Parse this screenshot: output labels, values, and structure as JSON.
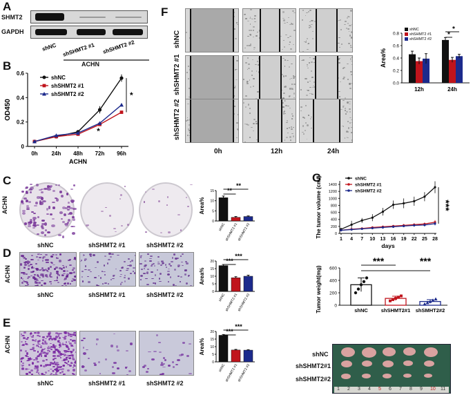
{
  "panels": {
    "A": "A",
    "B": "B",
    "C": "C",
    "D": "D",
    "E": "E",
    "F": "F",
    "G": "G"
  },
  "panel_a": {
    "row_labels": [
      "SHMT2",
      "GAPDH"
    ],
    "lane_labels": [
      "shNC",
      "shSHMT2 #1",
      "shSHMT2 #2"
    ],
    "cell_line": "ACHN"
  },
  "panel_c": {
    "cell_label": "ACHN",
    "conditions": [
      "shNC",
      "shSHMT2 #1",
      "shSHMT2 #2"
    ]
  },
  "panel_d": {
    "cell_label": "ACHN",
    "conditions": [
      "shNC",
      "shSHMT2 #1",
      "shSHMT2 #2"
    ]
  },
  "panel_e": {
    "cell_label": "ACHN",
    "conditions": [
      "shNC",
      "shSHMT2 #1",
      "shSHMT2 #2"
    ]
  },
  "panel_f": {
    "row_labels": [
      "shNC",
      "shSHMT2 #1",
      "shSHMT2 #2"
    ],
    "col_labels": [
      "0h",
      "12h",
      "24h"
    ]
  },
  "panel_g": {
    "photo_rows": [
      "shNC",
      "shSHMT2#1",
      "shSHMT2#2"
    ],
    "ruler": [
      "1",
      "2",
      "3",
      "4",
      "5",
      "6",
      "7",
      "8",
      "9",
      "10",
      "11"
    ]
  },
  "colors": {
    "shNC": "#111111",
    "sh1": "#c0141c",
    "sh2": "#1c2a8c",
    "purple": "#7a3a9a"
  },
  "chart_data": [
    {
      "id": "B",
      "type": "line",
      "ylabel": "OD450",
      "xlabel": "ACHN",
      "categories": [
        "0h",
        "24h",
        "48h",
        "72h",
        "96h"
      ],
      "ylim": [
        0,
        0.6
      ],
      "yticks": [
        0,
        0.2,
        0.4,
        0.6
      ],
      "series": [
        {
          "name": "shNC",
          "values": [
            0.04,
            0.08,
            0.12,
            0.3,
            0.56
          ],
          "err": [
            0.005,
            0.008,
            0.01,
            0.03,
            0.03
          ],
          "color": "#111111",
          "marker": "circle"
        },
        {
          "name": "shSHMT2 #1",
          "values": [
            0.04,
            0.08,
            0.1,
            0.18,
            0.28
          ],
          "err": [
            0.005,
            0.005,
            0.008,
            0.01,
            0.01
          ],
          "color": "#c0141c",
          "marker": "square"
        },
        {
          "name": "shSHMT2 #2",
          "values": [
            0.04,
            0.09,
            0.11,
            0.19,
            0.34
          ],
          "err": [
            0.005,
            0.005,
            0.008,
            0.01,
            0.01
          ],
          "color": "#1c2a8c",
          "marker": "triangle"
        }
      ],
      "annotations": [
        "*",
        "*"
      ]
    },
    {
      "id": "F",
      "type": "bar",
      "ylabel": "Area%",
      "categories": [
        "12h",
        "24h"
      ],
      "ylim": [
        0,
        0.8
      ],
      "yticks": [
        0.0,
        0.2,
        0.4,
        0.6,
        0.8
      ],
      "series": [
        {
          "name": "shNC",
          "values": [
            0.46,
            0.69
          ],
          "err": [
            0.05,
            0.04
          ],
          "color": "#111111"
        },
        {
          "name": "shSHMT2 #1",
          "values": [
            0.35,
            0.37
          ],
          "err": [
            0.05,
            0.04
          ],
          "color": "#c0141c"
        },
        {
          "name": "shSHMT2 #2",
          "values": [
            0.39,
            0.43
          ],
          "err": [
            0.08,
            0.03
          ],
          "color": "#1c2a8c"
        }
      ],
      "annotations": [
        "*",
        "*"
      ]
    },
    {
      "id": "C",
      "type": "bar",
      "ylabel": "Area%",
      "categories": [
        "shNC",
        "shSHMT2 #1",
        "shSHMT2 #2"
      ],
      "ylim": [
        0,
        15
      ],
      "yticks": [
        0,
        5,
        10,
        15
      ],
      "values": [
        11.5,
        1.8,
        2.2
      ],
      "err": [
        0.8,
        0.4,
        0.3
      ],
      "colors": [
        "#111111",
        "#c0141c",
        "#1c2a8c"
      ],
      "annotations": [
        "**",
        "**"
      ]
    },
    {
      "id": "D",
      "type": "bar",
      "ylabel": "Area%",
      "categories": [
        "shNC",
        "shSHMT2 #1",
        "shSHMT2 #2"
      ],
      "ylim": [
        0,
        20
      ],
      "yticks": [
        0,
        5,
        10,
        15,
        20
      ],
      "values": [
        17,
        9,
        10
      ],
      "err": [
        0.7,
        0.7,
        0.7
      ],
      "colors": [
        "#111111",
        "#c0141c",
        "#1c2a8c"
      ],
      "annotations": [
        "***",
        "***"
      ]
    },
    {
      "id": "E",
      "type": "bar",
      "ylabel": "Area%",
      "categories": [
        "shNC",
        "shSHMT2 #1",
        "shSHMT2 #2"
      ],
      "ylim": [
        0,
        20
      ],
      "yticks": [
        0,
        5,
        10,
        15,
        20
      ],
      "values": [
        17.5,
        7.8,
        7.7
      ],
      "err": [
        0.5,
        0.4,
        0.3
      ],
      "colors": [
        "#111111",
        "#c0141c",
        "#1c2a8c"
      ],
      "annotations": [
        "***",
        "***"
      ]
    },
    {
      "id": "G_volume",
      "type": "line",
      "ylabel": "The tumor volume (cm³)",
      "xlabel": "days",
      "categories": [
        "1",
        "4",
        "7",
        "10",
        "13",
        "16",
        "19",
        "22",
        "25",
        "28"
      ],
      "ylim": [
        0,
        1500
      ],
      "yticks": [
        0,
        200,
        400,
        600,
        800,
        1000,
        1200,
        1400
      ],
      "series": [
        {
          "name": "shNC",
          "values": [
            120,
            250,
            370,
            450,
            620,
            820,
            860,
            920,
            1050,
            1320
          ],
          "err": [
            40,
            110,
            70,
            100,
            110,
            120,
            140,
            130,
            130,
            170
          ],
          "color": "#111111"
        },
        {
          "name": "shSHMT2 #1",
          "values": [
            90,
            120,
            140,
            170,
            190,
            210,
            230,
            250,
            270,
            320
          ],
          "err": [
            30,
            30,
            30,
            30,
            30,
            30,
            40,
            40,
            40,
            60
          ],
          "color": "#c0141c"
        },
        {
          "name": "shSHMT2 #2",
          "values": [
            90,
            110,
            130,
            150,
            170,
            190,
            210,
            230,
            240,
            280
          ],
          "err": [
            20,
            20,
            20,
            20,
            30,
            30,
            30,
            30,
            40,
            50
          ],
          "color": "#1c2a8c"
        }
      ],
      "annotations": [
        "***"
      ]
    },
    {
      "id": "G_weight",
      "type": "scatter-bar",
      "ylabel": "Tumor weight(mg)",
      "categories": [
        "shNC",
        "shSHMT2#1",
        "shSMHT2#2"
      ],
      "ylim": [
        0,
        600
      ],
      "yticks": [
        0,
        200,
        400,
        600
      ],
      "values": [
        330,
        110,
        60
      ],
      "err": [
        110,
        35,
        30
      ],
      "colors": [
        "#111111",
        "#c0141c",
        "#1c2a8c"
      ],
      "points": [
        [
          200,
          260,
          330,
          380,
          440
        ],
        [
          70,
          90,
          110,
          130,
          150
        ],
        [
          20,
          40,
          60,
          80,
          100
        ]
      ],
      "annotations": [
        "***",
        "***"
      ]
    }
  ]
}
